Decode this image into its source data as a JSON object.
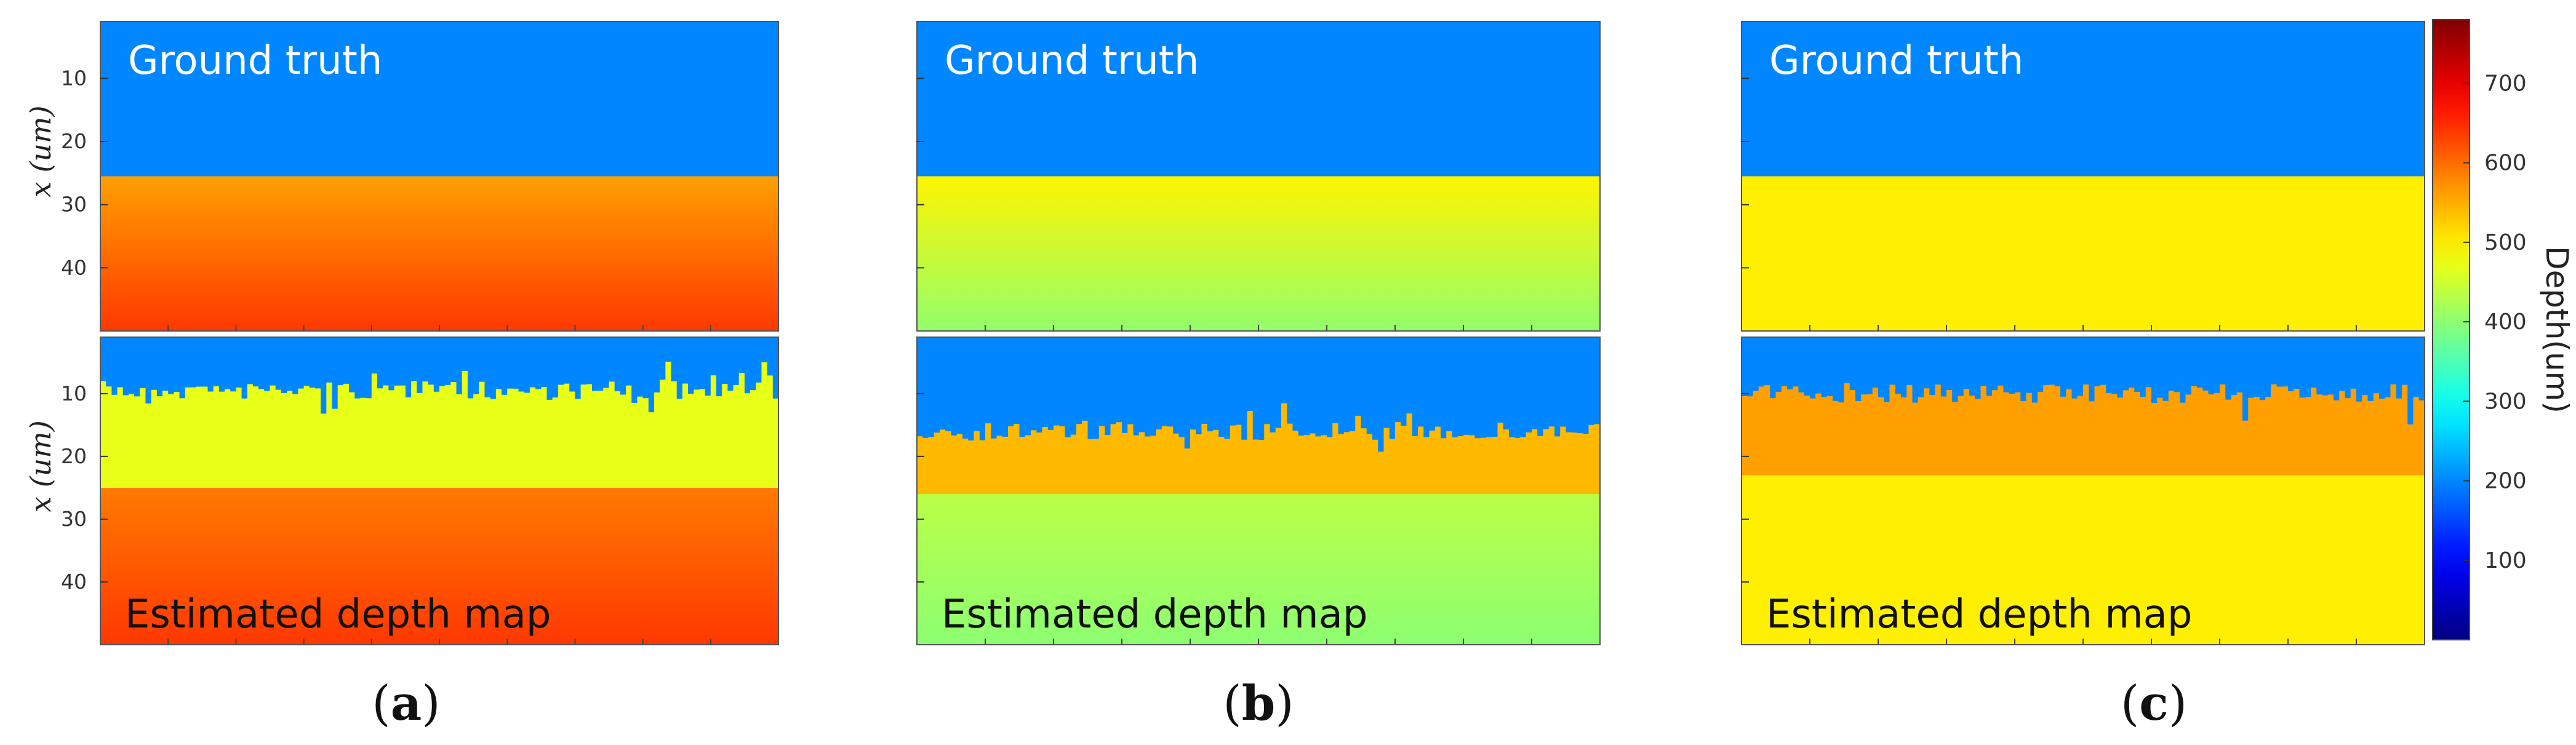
{
  "chart_data": {
    "type": "heatmap",
    "colormap": "jet",
    "x_axis_label": "x (um)",
    "x_ticks": [
      10,
      20,
      30,
      40
    ],
    "x_range": [
      1,
      50
    ],
    "colorbar": {
      "label": "Depth(um)",
      "range": [
        0,
        780
      ],
      "ticks": [
        100,
        200,
        300,
        400,
        500,
        600,
        700
      ]
    },
    "ground_truth_label": "Ground truth",
    "estimate_label": "Estimated depth map",
    "panels": [
      {
        "caption_letter": "a",
        "ground_truth": {
          "boundary_x": 25.5,
          "top_depth": 200,
          "bottom_depth_start": 560,
          "bottom_depth_end": 640
        },
        "estimate": {
          "surface_x": 9.5,
          "band_depth": 470,
          "band_end_x": 25,
          "lower_depth_start": 540,
          "lower_depth_end": 640
        }
      },
      {
        "caption_letter": "b",
        "ground_truth": {
          "boundary_x": 25.5,
          "top_depth": 200,
          "bottom_depth_start": 495,
          "bottom_depth_end": 405
        },
        "estimate": {
          "surface_x": 16,
          "band_depth": 540,
          "band_end_x": 26,
          "lower_depth_start": 470,
          "lower_depth_end": 400
        }
      },
      {
        "caption_letter": "c",
        "ground_truth": {
          "boundary_x": 25.5,
          "top_depth": 200,
          "bottom_depth_start": 500,
          "bottom_depth_end": 500
        },
        "estimate": {
          "surface_x": 10,
          "band_depth": 560,
          "band_end_x": 23,
          "lower_depth_start": 500,
          "lower_depth_end": 500
        }
      }
    ]
  },
  "captions": [
    {
      "open": "(",
      "letter": "a",
      "close": ")"
    },
    {
      "open": "(",
      "letter": "b",
      "close": ")"
    },
    {
      "open": "(",
      "letter": "c",
      "close": ")"
    }
  ],
  "labels": {
    "ground_truth": "Ground truth",
    "estimated": "Estimated depth map",
    "y_axis": "x (um)",
    "colorbar": "Depth(um)"
  }
}
